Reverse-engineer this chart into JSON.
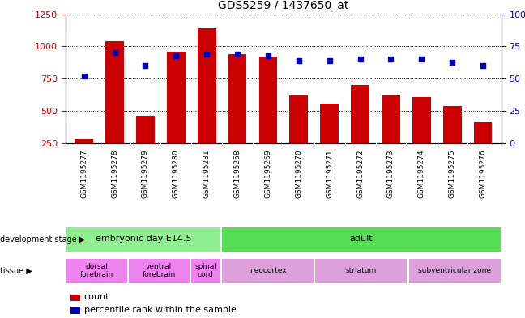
{
  "title": "GDS5259 / 1437650_at",
  "samples": [
    "GSM1195277",
    "GSM1195278",
    "GSM1195279",
    "GSM1195280",
    "GSM1195281",
    "GSM1195268",
    "GSM1195269",
    "GSM1195270",
    "GSM1195271",
    "GSM1195272",
    "GSM1195273",
    "GSM1195274",
    "GSM1195275",
    "GSM1195276"
  ],
  "counts": [
    280,
    1040,
    460,
    960,
    1140,
    940,
    920,
    620,
    555,
    700,
    620,
    610,
    540,
    415
  ],
  "percentiles": [
    52,
    70,
    60,
    68,
    69,
    69,
    68,
    64,
    64,
    65,
    65,
    65,
    63,
    60
  ],
  "ylim_left": [
    250,
    1250
  ],
  "ylim_right": [
    0,
    100
  ],
  "left_ticks": [
    250,
    500,
    750,
    1000,
    1250
  ],
  "right_ticks": [
    0,
    25,
    50,
    75,
    100
  ],
  "dev_stage_groups": [
    {
      "label": "embryonic day E14.5",
      "start": 0,
      "end": 5,
      "color": "#90EE90"
    },
    {
      "label": "adult",
      "start": 5,
      "end": 14,
      "color": "#55DD55"
    }
  ],
  "tissue_groups": [
    {
      "label": "dorsal\nforebrain",
      "start": 0,
      "end": 2,
      "color": "#EE82EE"
    },
    {
      "label": "ventral\nforebrain",
      "start": 2,
      "end": 4,
      "color": "#EE82EE"
    },
    {
      "label": "spinal\ncord",
      "start": 4,
      "end": 5,
      "color": "#EE82EE"
    },
    {
      "label": "neocortex",
      "start": 5,
      "end": 8,
      "color": "#DDA0DD"
    },
    {
      "label": "striatum",
      "start": 8,
      "end": 11,
      "color": "#DDA0DD"
    },
    {
      "label": "subventricular zone",
      "start": 11,
      "end": 14,
      "color": "#DDA0DD"
    }
  ],
  "bar_color": "#CC0000",
  "dot_color": "#0000BB",
  "left_label_color": "#CC0000",
  "right_label_color": "#0000BB",
  "xtick_bg_color": "#C8C8C8",
  "grid_line_color": "black"
}
